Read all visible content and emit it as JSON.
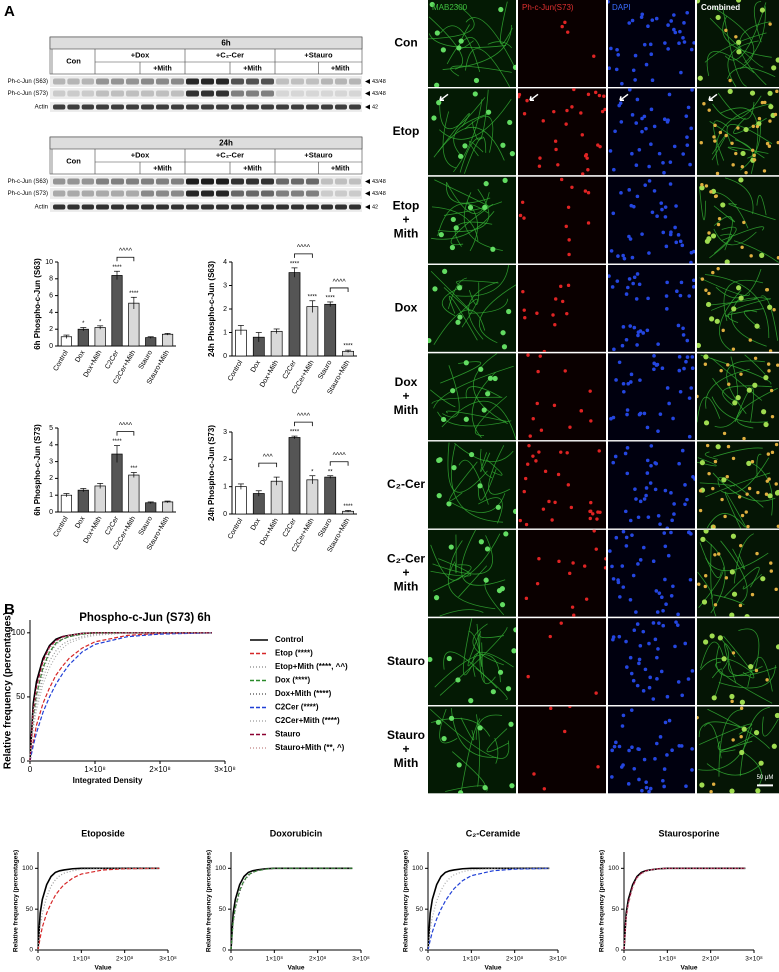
{
  "panel_labels": [
    "A",
    "B"
  ],
  "blots": [
    {
      "time": "6h",
      "columns": [
        "Con",
        "+Dox",
        "+C₂-Cer",
        "+Stauro"
      ],
      "sub_column": "+Mith",
      "rows": [
        "Ph-c-Jun (S63)",
        "Ph-c-Jun (S73)",
        "Actin"
      ],
      "sizes": [
        "43/48",
        "43/48",
        "42"
      ]
    },
    {
      "time": "24h",
      "columns": [
        "Con",
        "+Dox",
        "+C₂-Cer",
        "+Stauro"
      ],
      "sub_column": "+Mith",
      "rows": [
        "Ph-c-Jun (S63)",
        "Ph-c-Jun (S73)",
        "Actin"
      ],
      "sizes": [
        "43/48",
        "43/48",
        "42"
      ]
    }
  ],
  "micrographs": {
    "columns": [
      {
        "label": "MAB2300",
        "color": "#3fbf3f"
      },
      {
        "label": "Ph-c-Jun(S73)",
        "color": "#e03030"
      },
      {
        "label": "DAPI",
        "color": "#3a6cff"
      },
      {
        "label": "Combined",
        "color": "#ffffff"
      }
    ],
    "rows": [
      [
        "Con"
      ],
      [
        "Etop"
      ],
      [
        "Etop",
        "+",
        "Mith"
      ],
      [
        "Dox"
      ],
      [
        "Dox",
        "+",
        "Mith"
      ],
      [
        "C₂-Cer"
      ],
      [
        "C₂-Cer",
        "+",
        "Mith"
      ],
      [
        "Stauro"
      ],
      [
        "Stauro",
        "+",
        "Mith"
      ]
    ],
    "scale_bar": "50 μM"
  },
  "chart_data": [
    {
      "type": "bar",
      "title": "6h Phospho-c-Jun (S63)",
      "categories": [
        "Control",
        "Dox",
        "Dox+Mith",
        "C2Cer",
        "C2Cer+Mith",
        "Stauro",
        "Stauro+Mith"
      ],
      "values": [
        1.1,
        2.0,
        2.2,
        8.4,
        5.1,
        1.0,
        1.4
      ],
      "errors": [
        0.2,
        0.2,
        0.2,
        0.5,
        0.7,
        0.1,
        0.1
      ],
      "colors": [
        "#ffffff",
        "#555555",
        "#d9d9d9",
        "#555555",
        "#d9d9d9",
        "#555555",
        "#d9d9d9"
      ],
      "ylim": [
        0,
        10
      ],
      "yticks": [
        0,
        2,
        4,
        6,
        8,
        10
      ],
      "sig_labels": [
        null,
        "*",
        "*",
        "****",
        "****",
        null,
        null
      ],
      "brackets": [
        {
          "between": [
            "C2Cer",
            "C2Cer+Mith"
          ],
          "label": "^^^^"
        }
      ]
    },
    {
      "type": "bar",
      "title": "24h Phospho-c-Jun (S63)",
      "categories": [
        "Control",
        "Dox",
        "Dox+Mith",
        "C2Cer",
        "C2Cer+Mith",
        "Stauro",
        "Stauro+Mith"
      ],
      "values": [
        1.1,
        0.8,
        1.05,
        3.55,
        2.1,
        2.2,
        0.2
      ],
      "errors": [
        0.2,
        0.2,
        0.1,
        0.2,
        0.25,
        0.1,
        0.05
      ],
      "colors": [
        "#ffffff",
        "#555555",
        "#d9d9d9",
        "#555555",
        "#d9d9d9",
        "#555555",
        "#d9d9d9"
      ],
      "ylim": [
        0,
        4
      ],
      "yticks": [
        0,
        1,
        2,
        3,
        4
      ],
      "sig_labels": [
        null,
        null,
        null,
        "****",
        "****",
        "****",
        "****"
      ],
      "brackets": [
        {
          "between": [
            "C2Cer",
            "C2Cer+Mith"
          ],
          "label": "^^^^"
        },
        {
          "between": [
            "Stauro",
            "Stauro+Mith"
          ],
          "label": "^^^^"
        }
      ]
    },
    {
      "type": "bar",
      "title": "6h Phospho-c-Jun (S73)",
      "categories": [
        "Control",
        "Dox",
        "Dox+Mith",
        "C2Cer",
        "C2Cer+Mith",
        "Stauro",
        "Stauro+Mith"
      ],
      "values": [
        1.0,
        1.3,
        1.55,
        3.45,
        2.2,
        0.55,
        0.6
      ],
      "errors": [
        0.1,
        0.1,
        0.15,
        0.5,
        0.15,
        0.05,
        0.05
      ],
      "colors": [
        "#ffffff",
        "#555555",
        "#d9d9d9",
        "#555555",
        "#d9d9d9",
        "#555555",
        "#d9d9d9"
      ],
      "ylim": [
        0,
        5
      ],
      "yticks": [
        0,
        1,
        2,
        3,
        4,
        5
      ],
      "sig_labels": [
        null,
        null,
        null,
        "****",
        "***",
        null,
        null
      ],
      "brackets": [
        {
          "between": [
            "C2Cer",
            "C2Cer+Mith"
          ],
          "label": "^^^^"
        }
      ]
    },
    {
      "type": "bar",
      "title": "24h Phospho-c-Jun (S73)",
      "categories": [
        "Control",
        "Dox",
        "Dox+Mith",
        "C2Cer",
        "C2Cer+Mith",
        "Stauro",
        "Stauro+Mith"
      ],
      "values": [
        1.0,
        0.75,
        1.2,
        2.8,
        1.25,
        1.35,
        0.1
      ],
      "errors": [
        0.1,
        0.1,
        0.15,
        0.05,
        0.15,
        0.05,
        0.03
      ],
      "colors": [
        "#ffffff",
        "#555555",
        "#d9d9d9",
        "#555555",
        "#d9d9d9",
        "#555555",
        "#d9d9d9"
      ],
      "ylim": [
        0,
        3
      ],
      "yticks": [
        0,
        1,
        2,
        3
      ],
      "sig_labels": [
        null,
        null,
        null,
        "****",
        "*",
        "**",
        "****"
      ],
      "brackets": [
        {
          "between": [
            "Dox",
            "Dox+Mith"
          ],
          "label": "^^^"
        },
        {
          "between": [
            "C2Cer",
            "C2Cer+Mith"
          ],
          "label": "^^^^"
        },
        {
          "between": [
            "Stauro",
            "Stauro+Mith"
          ],
          "label": "^^^^"
        }
      ]
    },
    {
      "type": "line",
      "title": "Phospho-c-Jun (S73) 6h",
      "xlabel": "Integrated Density",
      "ylabel": "Relative frequency (percentages)",
      "x": [
        0,
        5000000,
        10000000,
        20000000,
        30000000,
        40000000,
        50000000,
        60000000,
        80000000,
        100000000,
        150000000,
        200000000,
        280000000
      ],
      "xlim": [
        0,
        300000000
      ],
      "xticks": [
        0,
        {
          "value": 100000000,
          "label": "1×10⁸"
        },
        {
          "value": 200000000,
          "label": "2×10⁸"
        },
        {
          "value": 300000000,
          "label": "3×10⁸"
        }
      ],
      "ylim": [
        0,
        110
      ],
      "yticks": [
        0,
        50,
        100
      ],
      "legend": "right",
      "series": [
        {
          "name": "Control",
          "color": "#000000",
          "dash": "solid",
          "values": [
            0,
            45,
            62,
            80,
            90,
            95,
            97,
            98,
            99.5,
            100,
            100,
            100,
            100
          ]
        },
        {
          "name": "Etop (****)",
          "color": "#d62728",
          "dash": "dashed",
          "values": [
            0,
            15,
            28,
            45,
            57,
            67,
            74,
            80,
            88,
            93,
            98,
            99.5,
            100
          ]
        },
        {
          "name": "Etop+Mith (****, ^^)",
          "color": "#999999",
          "dash": "dotted",
          "values": [
            0,
            30,
            45,
            65,
            78,
            86,
            91,
            94,
            97,
            99,
            100,
            100,
            100
          ]
        },
        {
          "name": "Dox (****)",
          "color": "#2a8a2a",
          "dash": "dashed",
          "values": [
            0,
            35,
            52,
            73,
            85,
            92,
            95,
            97,
            99,
            100,
            100,
            100,
            100
          ]
        },
        {
          "name": "Dox+Mith (****)",
          "color": "#666666",
          "dash": "dotted",
          "values": [
            0,
            33,
            50,
            71,
            84,
            91,
            95,
            97,
            99,
            100,
            100,
            100,
            100
          ]
        },
        {
          "name": "C2Cer (****)",
          "color": "#1f3fd6",
          "dash": "dashed",
          "values": [
            0,
            12,
            22,
            38,
            50,
            60,
            68,
            75,
            85,
            91,
            97,
            99,
            100
          ]
        },
        {
          "name": "C2Cer+Mith (****)",
          "color": "#aaaaaa",
          "dash": "dotted",
          "values": [
            0,
            25,
            40,
            60,
            73,
            82,
            88,
            92,
            96,
            98,
            100,
            100,
            100
          ]
        },
        {
          "name": "Stauro",
          "color": "#8b0030",
          "dash": "dashed",
          "values": [
            0,
            40,
            58,
            78,
            89,
            94,
            97,
            98,
            99.5,
            100,
            100,
            100,
            100
          ]
        },
        {
          "name": "Stauro+Mith (**, ^)",
          "color": "#cc9999",
          "dash": "dotted",
          "values": [
            0,
            38,
            55,
            76,
            88,
            93,
            96,
            98,
            99.5,
            100,
            100,
            100,
            100
          ]
        }
      ]
    },
    {
      "type": "line",
      "title": "Etoposide",
      "xlabel": "Value",
      "ylabel": "Relative frequency (percentages)",
      "x": [
        0,
        5000000,
        10000000,
        20000000,
        30000000,
        40000000,
        50000000,
        60000000,
        80000000,
        100000000,
        150000000,
        200000000,
        280000000
      ],
      "xlim": [
        0,
        300000000
      ],
      "xticks": [
        0,
        {
          "value": 100000000,
          "label": "1×10⁸"
        },
        {
          "value": 200000000,
          "label": "2×10⁸"
        },
        {
          "value": 300000000,
          "label": "3×10⁸"
        }
      ],
      "ylim": [
        0,
        120
      ],
      "yticks": [
        0,
        50,
        100
      ],
      "series": [
        {
          "color": "#000000",
          "dash": "solid",
          "values": [
            0,
            45,
            62,
            80,
            90,
            95,
            97,
            98,
            99.5,
            100,
            100,
            100,
            100
          ]
        },
        {
          "color": "#d62728",
          "dash": "dashed",
          "values": [
            0,
            15,
            28,
            45,
            57,
            67,
            74,
            80,
            88,
            93,
            98,
            99.5,
            100
          ]
        },
        {
          "color": "#999999",
          "dash": "dotted",
          "values": [
            0,
            30,
            45,
            65,
            78,
            86,
            91,
            94,
            97,
            99,
            100,
            100,
            100
          ]
        }
      ]
    },
    {
      "type": "line",
      "title": "Doxorubicin",
      "xlabel": "Value",
      "ylabel": "Relative frequency (percentages)",
      "x": [
        0,
        5000000,
        10000000,
        20000000,
        30000000,
        40000000,
        50000000,
        60000000,
        80000000,
        100000000,
        150000000,
        200000000,
        280000000
      ],
      "xlim": [
        0,
        300000000
      ],
      "xticks": [
        0,
        {
          "value": 100000000,
          "label": "1×10⁸"
        },
        {
          "value": 200000000,
          "label": "2×10⁸"
        },
        {
          "value": 300000000,
          "label": "3×10⁸"
        }
      ],
      "ylim": [
        0,
        120
      ],
      "yticks": [
        0,
        50,
        100
      ],
      "series": [
        {
          "color": "#000000",
          "dash": "solid",
          "values": [
            0,
            45,
            62,
            80,
            90,
            95,
            97,
            98,
            99.5,
            100,
            100,
            100,
            100
          ]
        },
        {
          "color": "#2a8a2a",
          "dash": "dashed",
          "values": [
            0,
            35,
            52,
            73,
            85,
            92,
            95,
            97,
            99,
            100,
            100,
            100,
            100
          ]
        },
        {
          "color": "#666666",
          "dash": "dotted",
          "values": [
            0,
            33,
            50,
            71,
            84,
            91,
            95,
            97,
            99,
            100,
            100,
            100,
            100
          ]
        }
      ]
    },
    {
      "type": "line",
      "title": "C₂-Ceramide",
      "xlabel": "Value",
      "ylabel": "Relative frequency (percentages)",
      "x": [
        0,
        5000000,
        10000000,
        20000000,
        30000000,
        40000000,
        50000000,
        60000000,
        80000000,
        100000000,
        150000000,
        200000000,
        280000000
      ],
      "xlim": [
        0,
        300000000
      ],
      "xticks": [
        0,
        {
          "value": 100000000,
          "label": "1×10⁸"
        },
        {
          "value": 200000000,
          "label": "2×10⁸"
        },
        {
          "value": 300000000,
          "label": "3×10⁸"
        }
      ],
      "ylim": [
        0,
        120
      ],
      "yticks": [
        0,
        50,
        100
      ],
      "series": [
        {
          "color": "#000000",
          "dash": "solid",
          "values": [
            0,
            45,
            62,
            80,
            90,
            95,
            97,
            98,
            99.5,
            100,
            100,
            100,
            100
          ]
        },
        {
          "color": "#1f3fd6",
          "dash": "dashed",
          "values": [
            0,
            12,
            22,
            38,
            50,
            60,
            68,
            75,
            85,
            91,
            97,
            99,
            100
          ]
        },
        {
          "color": "#aaaaaa",
          "dash": "dotted",
          "values": [
            0,
            25,
            40,
            60,
            73,
            82,
            88,
            92,
            96,
            98,
            100,
            100,
            100
          ]
        }
      ]
    },
    {
      "type": "line",
      "title": "Staurosporine",
      "xlabel": "Value",
      "ylabel": "Relative frequency (percentages)",
      "x": [
        0,
        5000000,
        10000000,
        20000000,
        30000000,
        40000000,
        50000000,
        60000000,
        80000000,
        100000000,
        150000000,
        200000000,
        280000000
      ],
      "xlim": [
        0,
        300000000
      ],
      "xticks": [
        0,
        {
          "value": 100000000,
          "label": "1×10⁸"
        },
        {
          "value": 200000000,
          "label": "2×10⁸"
        },
        {
          "value": 300000000,
          "label": "3×10⁸"
        }
      ],
      "ylim": [
        0,
        120
      ],
      "yticks": [
        0,
        50,
        100
      ],
      "series": [
        {
          "color": "#000000",
          "dash": "solid",
          "values": [
            0,
            45,
            62,
            80,
            90,
            95,
            97,
            98,
            99.5,
            100,
            100,
            100,
            100
          ]
        },
        {
          "color": "#8b0030",
          "dash": "dashed",
          "values": [
            0,
            40,
            58,
            78,
            89,
            94,
            97,
            98,
            99.5,
            100,
            100,
            100,
            100
          ]
        },
        {
          "color": "#cc9999",
          "dash": "dotted",
          "values": [
            0,
            38,
            55,
            76,
            88,
            93,
            96,
            98,
            99.5,
            100,
            100,
            100,
            100
          ]
        }
      ]
    }
  ]
}
